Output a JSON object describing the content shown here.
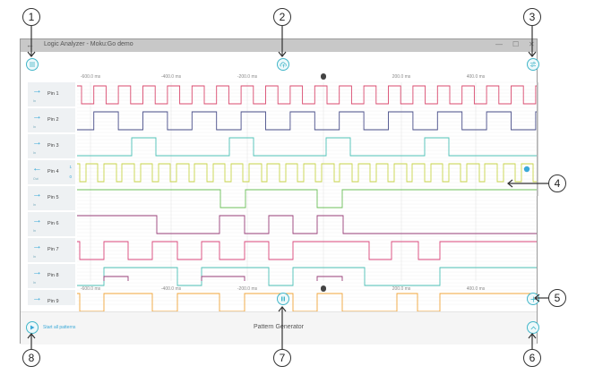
{
  "window": {
    "title": "Logic Analyzer - Moku:Go demo",
    "back_glyph": "←",
    "minimize_glyph": "—",
    "maximize_glyph": "☐",
    "close_glyph": "✕"
  },
  "toolbar": {
    "menu_icon": "hamburger-menu-icon",
    "cloud_icon": "cloud-upload-icon",
    "settings_icon": "sliders-settings-icon"
  },
  "time_axis": {
    "top_labels": [
      "-600.0 ms",
      "-400.0 ms",
      "-200.0 ms",
      "200.0 ms",
      "400.0 ms"
    ],
    "bottom_labels": [
      "-600.0 ms",
      "-400.0 ms",
      "-200.0 ms",
      "200.0 ms",
      "400.0 ms"
    ],
    "trigger_marker": "T",
    "origin_marker": "0"
  },
  "pins": [
    {
      "name": "Pin 1",
      "dir": "In",
      "arrow": "→",
      "color": "#d94a6e"
    },
    {
      "name": "Pin 2",
      "dir": "In",
      "arrow": "→",
      "color": "#4a4f8a"
    },
    {
      "name": "Pin 3",
      "dir": "In",
      "arrow": "→",
      "color": "#4cc1b6"
    },
    {
      "name": "Pin 4",
      "dir": "Out",
      "arrow": "←",
      "color": "#c9d44a",
      "high_label": "1",
      "low_label": "0"
    },
    {
      "name": "Pin 5",
      "dir": "In",
      "arrow": "→",
      "color": "#6cbf59"
    },
    {
      "name": "Pin 6",
      "dir": "In",
      "arrow": "→",
      "color": "#9a3f7a"
    },
    {
      "name": "Pin 7",
      "dir": "In",
      "arrow": "→",
      "color": "#d9467a"
    },
    {
      "name": "Pin 8",
      "dir": "In",
      "arrow": "→",
      "color": "#4cc1b6"
    },
    {
      "name": "Pin 9",
      "dir": "In",
      "arrow": "→",
      "color": "#f0a43a"
    }
  ],
  "footer": {
    "start_label": "Start all patterns",
    "panel_title": "Pattern Generator"
  },
  "controls": {
    "pause_icon": "pause-icon",
    "add_icon": "plus-icon",
    "expand_icon": "chevron-up-icon",
    "play_icon": "play-icon"
  },
  "callouts": [
    "1",
    "2",
    "3",
    "4",
    "5",
    "6",
    "7",
    "8"
  ],
  "colors": {
    "accent": "#43b6c9",
    "titlebar": "#c8c8c8",
    "label_bg": "#eef1f3"
  }
}
